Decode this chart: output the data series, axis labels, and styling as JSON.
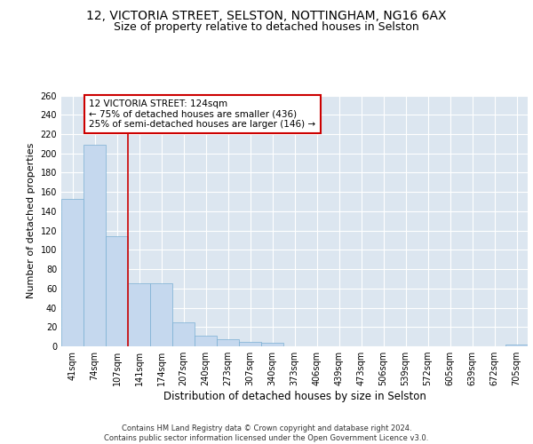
{
  "title_line1": "12, VICTORIA STREET, SELSTON, NOTTINGHAM, NG16 6AX",
  "title_line2": "Size of property relative to detached houses in Selston",
  "xlabel": "Distribution of detached houses by size in Selston",
  "ylabel": "Number of detached properties",
  "categories": [
    "41sqm",
    "74sqm",
    "107sqm",
    "141sqm",
    "174sqm",
    "207sqm",
    "240sqm",
    "273sqm",
    "307sqm",
    "340sqm",
    "373sqm",
    "406sqm",
    "439sqm",
    "473sqm",
    "506sqm",
    "539sqm",
    "572sqm",
    "605sqm",
    "639sqm",
    "672sqm",
    "705sqm"
  ],
  "values": [
    153,
    209,
    114,
    65,
    65,
    25,
    11,
    7,
    5,
    4,
    0,
    0,
    0,
    0,
    0,
    0,
    0,
    0,
    0,
    0,
    2
  ],
  "bar_color": "#c5d8ee",
  "bar_edge_color": "#7aafd4",
  "background_color": "#dce6f0",
  "grid_color": "#ffffff",
  "annotation_text": "12 VICTORIA STREET: 124sqm\n← 75% of detached houses are smaller (436)\n25% of semi-detached houses are larger (146) →",
  "annotation_box_color": "#ffffff",
  "annotation_box_edge_color": "#cc0000",
  "red_line_x": 2.5,
  "ylim": [
    0,
    260
  ],
  "yticks": [
    0,
    20,
    40,
    60,
    80,
    100,
    120,
    140,
    160,
    180,
    200,
    220,
    240,
    260
  ],
  "footnote": "Contains HM Land Registry data © Crown copyright and database right 2024.\nContains public sector information licensed under the Open Government Licence v3.0.",
  "title_fontsize": 10,
  "subtitle_fontsize": 9,
  "annotation_fontsize": 7.5,
  "tick_fontsize": 7,
  "ylabel_fontsize": 8,
  "xlabel_fontsize": 8.5,
  "footnote_fontsize": 6
}
